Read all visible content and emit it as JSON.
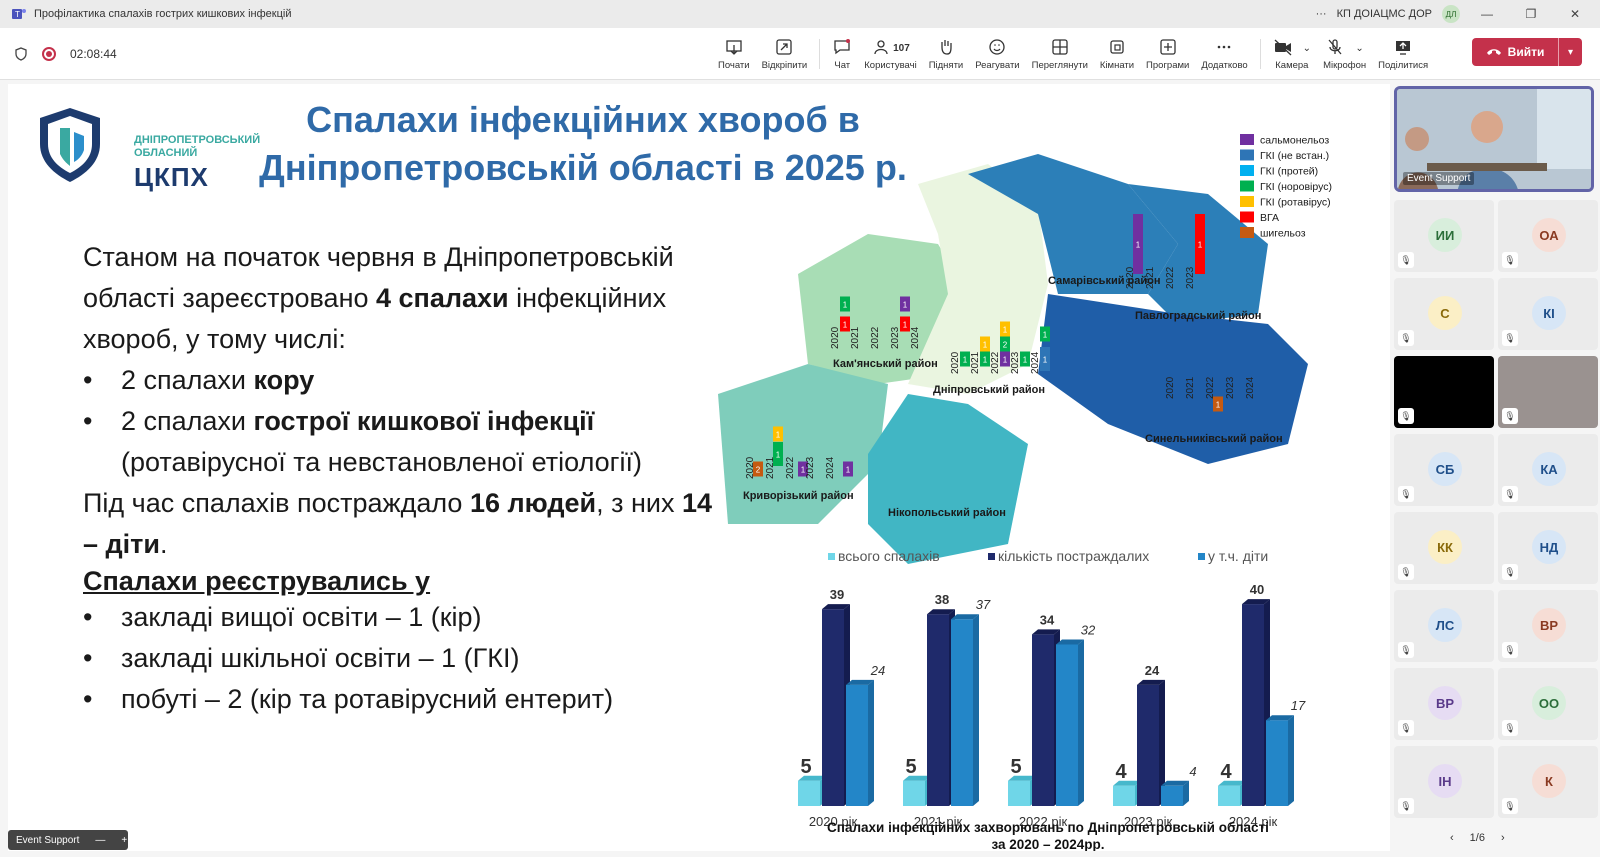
{
  "window": {
    "title": "Профілактика спалахів гострих кишкових інфекцій",
    "org": "КП ДОІАЦМС ДОР",
    "user_initials": "ДЛ",
    "more": "···"
  },
  "meeting": {
    "timer": "02:08:44",
    "participants_count": "107",
    "tools": [
      {
        "label": "Почати",
        "icon": "present-icon"
      },
      {
        "label": "Відкріпити",
        "icon": "unpin-icon"
      },
      {
        "label": "Чат",
        "icon": "chat-icon"
      },
      {
        "label": "Користувачі",
        "icon": "people-icon"
      },
      {
        "label": "Підняти",
        "icon": "raise-hand-icon"
      },
      {
        "label": "Реагувати",
        "icon": "react-icon"
      },
      {
        "label": "Переглянути",
        "icon": "view-icon"
      },
      {
        "label": "Кімнати",
        "icon": "rooms-icon"
      },
      {
        "label": "Програми",
        "icon": "apps-icon"
      },
      {
        "label": "Додатково",
        "icon": "more-icon"
      },
      {
        "label": "Камера",
        "icon": "camera-icon"
      },
      {
        "label": "Мікрофон",
        "icon": "mic-icon"
      },
      {
        "label": "Поділитися",
        "icon": "share-icon"
      }
    ],
    "leave_label": "Вийти"
  },
  "slide": {
    "logo_sub": "ДНІПРОПЕТРОВСЬКИЙ ОБЛАСНИЙ",
    "logo_main": "ЦКПХ",
    "title_line1": "Спалахи інфекційних хвороб в",
    "title_line2": "Дніпропетровській області в 2025 р.",
    "p1_a": "Станом на початок червня в Дніпропетровській області зареєстровано ",
    "p1_b": "4 спалахи",
    "p1_c": " інфекційних хвороб, у тому числі:",
    "b1_a": "2 спалахи ",
    "b1_b": "кору",
    "b2_a": "2 спалахи ",
    "b2_b": "гострої кишкової інфекції",
    "b2_c": " (ротавірусної та невстановленої етіології)",
    "p2_a": "Під час спалахів постраждало ",
    "p2_b": "16 людей",
    "p2_c": ", з них ",
    "p2_d": "14 – діти",
    "p2_e": ".",
    "sub_heading": "Спалахи реєструвались у",
    "b3": "закладі вищої освіти – 1 (кір)",
    "b4": "закладі шкільної освіти – 1 (ГКІ)",
    "b5": "побуті – 2 (кір та ротавірусний ентерит)"
  },
  "map": {
    "legend": [
      {
        "label": "сальмонельоз",
        "color": "#7030a0"
      },
      {
        "label": "ГКІ (не встан.)",
        "color": "#2e75b6"
      },
      {
        "label": "ГКІ (протей)",
        "color": "#00b0f0"
      },
      {
        "label": "ГКІ (норовірус)",
        "color": "#00b050"
      },
      {
        "label": "ГКІ (ротавірус)",
        "color": "#ffc000"
      },
      {
        "label": "ВГА",
        "color": "#ff0000"
      },
      {
        "label": "шигельоз",
        "color": "#c55a11"
      }
    ],
    "districts": [
      {
        "name": "Кам'янський район",
        "years": [
          "2020",
          "2021",
          "2022",
          "2023",
          "2024"
        ]
      },
      {
        "name": "Дніпровський район",
        "years": [
          "2020",
          "2021",
          "2022",
          "2023",
          "2024"
        ]
      },
      {
        "name": "Самарівський район",
        "years": [
          "2020",
          "2021",
          "2022",
          "2023"
        ]
      },
      {
        "name": "Павлоградський район",
        "years": []
      },
      {
        "name": "Синельниківський район",
        "years": [
          "2020",
          "2021",
          "2022",
          "2023",
          "2024"
        ]
      },
      {
        "name": "Криворізький район",
        "years": [
          "2020",
          "2021",
          "2022",
          "2023",
          "2024"
        ]
      },
      {
        "name": "Нікопольський район",
        "years": []
      }
    ],
    "bar_labels": [
      "1",
      "1",
      "1",
      "1",
      "1",
      "1",
      "1",
      "1",
      "2",
      "1",
      "1",
      "1",
      "1",
      "1",
      "1",
      "1",
      "2",
      "1",
      "1",
      "1"
    ]
  },
  "chart_data": {
    "type": "bar",
    "title": "Спалахи інфекційних захворювань по Дніпропетровській області за 2020 – 2024рр.",
    "categories": [
      "2020 рік",
      "2021 рік",
      "2022 рік",
      "2023 рік",
      "2024 рік"
    ],
    "series": [
      {
        "name": "всього спалахів",
        "values": [
          5,
          5,
          5,
          4,
          4
        ],
        "color": "#6fd6e8"
      },
      {
        "name": "кількість постраждалих",
        "values": [
          39,
          38,
          34,
          24,
          40
        ],
        "color": "#1f2a6b"
      },
      {
        "name": "у т.ч. діти",
        "values": [
          24,
          37,
          32,
          4,
          17
        ],
        "color": "#2386c8"
      }
    ],
    "legend_position": "top",
    "grid": false
  },
  "sidebar": {
    "video_label": "Event Support",
    "participants": [
      {
        "initials": "ИИ",
        "bg": "#d8eedc",
        "fg": "#2c6e3a"
      },
      {
        "initials": "ОА",
        "bg": "#f6ddd5",
        "fg": "#8a3a22"
      },
      {
        "initials": "С",
        "bg": "#fbefc6",
        "fg": "#8a6a0a"
      },
      {
        "initials": "КІ",
        "bg": "#d7e6f6",
        "fg": "#1f4f8a"
      },
      {
        "initials": "",
        "bg": "#000000",
        "fg": "#ffffff"
      },
      {
        "initials": "",
        "bg": "#9a9290",
        "fg": "#ffffff"
      },
      {
        "initials": "СБ",
        "bg": "#d7e6f6",
        "fg": "#1f4f8a"
      },
      {
        "initials": "КА",
        "bg": "#d7e6f6",
        "fg": "#1f4f8a"
      },
      {
        "initials": "КК",
        "bg": "#fbefc6",
        "fg": "#8a6a0a"
      },
      {
        "initials": "НД",
        "bg": "#d7e6f6",
        "fg": "#1f4f8a"
      },
      {
        "initials": "ЛС",
        "bg": "#d7e6f6",
        "fg": "#1f4f8a"
      },
      {
        "initials": "ВР",
        "bg": "#f6ddd5",
        "fg": "#8a3a22"
      },
      {
        "initials": "ВР",
        "bg": "#e6dcf3",
        "fg": "#5a3a8a"
      },
      {
        "initials": "ОО",
        "bg": "#d8eedc",
        "fg": "#2c6e3a"
      },
      {
        "initials": "ІН",
        "bg": "#e6dcf3",
        "fg": "#5a3a8a"
      },
      {
        "initials": "К",
        "bg": "#f6ddd5",
        "fg": "#8a3a22"
      }
    ],
    "pager": "1/6",
    "pager_prev": "‹",
    "pager_next": "›"
  },
  "self_view": {
    "label": "Event Support",
    "minimize": "—",
    "add": "+"
  }
}
